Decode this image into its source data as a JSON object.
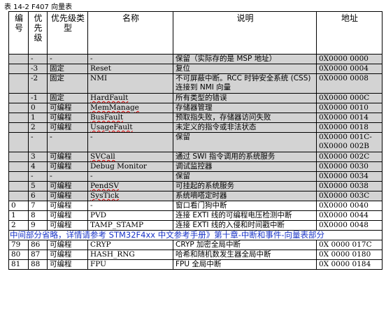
{
  "caption": "表 14-2 F407 向量表",
  "headers": [
    "编号",
    "优先级",
    "优先级类型",
    "名称",
    "说明",
    "地址"
  ],
  "rows": [
    {
      "pos": "",
      "prio": "-",
      "type": "-",
      "name": "-",
      "desc": "保留（实际存的是 MSP 地址）",
      "addr": "0X0000 0000",
      "gray": true,
      "wavy": false
    },
    {
      "pos": "",
      "prio": "-3",
      "type": "固定",
      "name": "Reset",
      "desc": "复位",
      "addr": "0X0000 0004",
      "gray": true,
      "wavy": false
    },
    {
      "pos": "",
      "prio": "-2",
      "type": "固定",
      "name": "NMI",
      "desc": "不可屏蔽中断。RCC 时钟安全系统 (CSS) 连接到 NMI 向量",
      "addr": "0X0000 0008",
      "gray": true,
      "wavy": false
    },
    {
      "pos": "",
      "prio": "-1",
      "type": "固定",
      "name": "HardFault",
      "desc": "所有类型的错误",
      "addr": "0X0000 000C",
      "gray": true,
      "wavy": true
    },
    {
      "pos": "",
      "prio": "0",
      "type": "可编程",
      "name": "MemManage",
      "desc": "存储器管理",
      "addr": "0X0000 0010",
      "gray": true,
      "wavy": true
    },
    {
      "pos": "",
      "prio": "1",
      "type": "可编程",
      "name": "BusFault",
      "desc": "预取指失败，存储器访问失败",
      "addr": "0X0000 0014",
      "gray": true,
      "wavy": true
    },
    {
      "pos": "",
      "prio": "2",
      "type": "可编程",
      "name": "UsageFault",
      "desc": "未定义的指令或非法状态",
      "addr": "0X0000 0018",
      "gray": true,
      "wavy": true
    },
    {
      "pos": "",
      "prio": "-",
      "type": "-",
      "name": "-",
      "desc": "保留",
      "addr": "0X0000 001C-0X0000 002B",
      "gray": true,
      "wavy": false
    },
    {
      "pos": "",
      "prio": "3",
      "type": "可编程",
      "name": "SVCall",
      "desc": "通过 SWI 指令调用的系统服务",
      "addr": "0X0000 002C",
      "gray": true,
      "wavy": true
    },
    {
      "pos": "",
      "prio": "4",
      "type": "可编程",
      "name": "Debug Monitor",
      "desc": "调试监控器",
      "addr": "0X0000 0030",
      "gray": true,
      "wavy": false
    },
    {
      "pos": "",
      "prio": "-",
      "type": "-",
      "name": "-",
      "desc": "保留",
      "addr": "0X0000 0034",
      "gray": true,
      "wavy": false
    },
    {
      "pos": "",
      "prio": "5",
      "type": "可编程",
      "name": "PendSV",
      "desc": "可挂起的系统服务",
      "addr": "0X0000 0038",
      "gray": true,
      "wavy": true
    },
    {
      "pos": "",
      "prio": "6",
      "type": "可编程",
      "name": "SysTick",
      "desc": "系统嘀嗒定时器",
      "addr": "0X0000 003C",
      "gray": true,
      "wavy": true
    },
    {
      "pos": "0",
      "prio": "7",
      "type": "可编程",
      "name": "-",
      "desc": "窗口看门狗中断",
      "addr": "0X0000 0040",
      "gray": false,
      "wavy": false
    },
    {
      "pos": "1",
      "prio": "8",
      "type": "可编程",
      "name": "PVD",
      "desc": "连接 EXTI 线的可编程电压检测中断",
      "addr": "0X0000 0044",
      "gray": false,
      "wavy": false
    },
    {
      "pos": "2",
      "prio": "9",
      "type": "可编程",
      "name": "TAMP_STAMP",
      "desc": "连接 EXTI 线的入侵和时间戳中断",
      "addr": "0X0000 0048",
      "gray": false,
      "wavy": false
    }
  ],
  "note": "中间部分省略，详情请参考 STM32F4xx 中文参考手册》第十章-中断和事件-向量表部分",
  "tail_rows": [
    {
      "pos": "79",
      "prio": "86",
      "type": "可编程",
      "name": "CRYP",
      "desc": "CRYP 加密全局中断",
      "addr": "0X 0000 017C"
    },
    {
      "pos": "80",
      "prio": "87",
      "type": "可编程",
      "name": "HASH_RNG",
      "desc": "哈希和随机数发生器全局中断",
      "addr": "0X 0000 0180"
    },
    {
      "pos": "81",
      "prio": "88",
      "type": "可编程",
      "name": "FPU",
      "desc": "FPU 全局中断",
      "addr": "0X 0000 0184"
    }
  ]
}
